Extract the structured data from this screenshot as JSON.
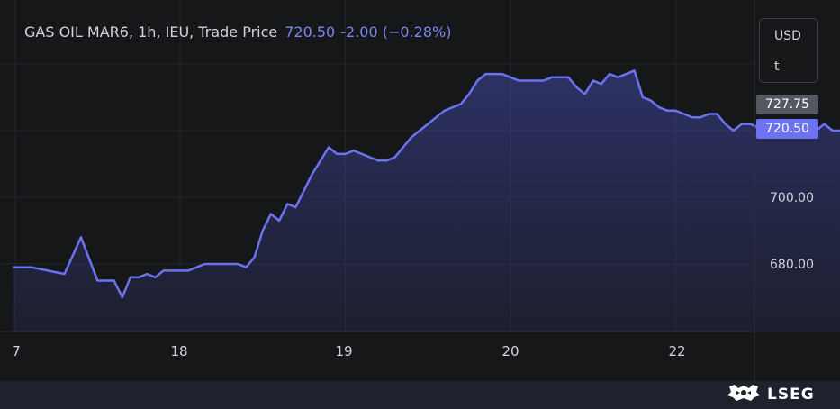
{
  "legend": {
    "title": "GAS OIL MAR6, 1h, IEU, Trade Price",
    "price": "720.50",
    "change": "-2.00 (−0.28%)"
  },
  "currency": {
    "code": "USD",
    "unit": "t"
  },
  "badges": {
    "last": "727.75",
    "current": "720.50"
  },
  "brand": {
    "logo_text": "LSEG"
  },
  "colors": {
    "line": "#6b73f0",
    "background": "#161719",
    "footer": "#1e222d"
  },
  "chart_data": {
    "type": "area",
    "title": "GAS OIL MAR6, 1h, IEU, Trade Price",
    "y_ticks": [
      "680.00",
      "700.00"
    ],
    "x_ticks": [
      "7",
      "18",
      "19",
      "20",
      "22"
    ],
    "ylim": [
      660,
      740
    ],
    "grid": true,
    "x_days": [
      17,
      17.1,
      17.2,
      17.3,
      17.4,
      17.5,
      17.6,
      17.65,
      17.7,
      17.75,
      17.8,
      17.85,
      17.9,
      17.95,
      18.0,
      18.05,
      18.1,
      18.15,
      18.2,
      18.25,
      18.3,
      18.35,
      18.4,
      18.45,
      18.5,
      18.55,
      18.6,
      18.65,
      18.7,
      18.75,
      18.8,
      18.85,
      18.9,
      18.95,
      19.0,
      19.05,
      19.1,
      19.15,
      19.2,
      19.25,
      19.3,
      19.35,
      19.4,
      19.45,
      19.5,
      19.55,
      19.6,
      19.65,
      19.7,
      19.75,
      19.8,
      19.85,
      19.9,
      19.95,
      20.0,
      20.05,
      20.1,
      20.15,
      20.2,
      20.25,
      20.3,
      20.35,
      20.4,
      20.45,
      20.5,
      20.55,
      20.6,
      20.65,
      20.7,
      20.75,
      20.8,
      20.85,
      20.9,
      20.95,
      21.0,
      21.05,
      21.1,
      21.15,
      21.2,
      21.25,
      21.3,
      21.35,
      21.4,
      21.45,
      21.5,
      21.55,
      21.6,
      21.65,
      21.7,
      21.75,
      21.8,
      21.85,
      21.9,
      21.95,
      22.0,
      22.05,
      22.1,
      22.15,
      22.2,
      22.25,
      22.3,
      22.35
    ],
    "values": [
      679,
      679,
      678,
      677,
      688,
      675,
      675,
      670,
      676,
      676,
      677,
      676,
      678,
      678,
      678,
      678,
      679,
      680,
      680,
      680,
      680,
      680,
      679,
      682,
      690,
      695,
      693,
      698,
      697,
      702,
      707,
      711,
      715,
      713,
      713,
      714,
      713,
      712,
      711,
      711,
      712,
      715,
      718,
      720,
      722,
      724,
      726,
      727,
      728,
      731,
      735,
      737,
      737,
      737,
      736,
      735,
      735,
      735,
      735,
      736,
      736,
      736,
      733,
      731,
      735,
      734,
      737,
      736,
      737,
      738,
      730,
      729,
      727,
      726,
      726,
      725,
      724,
      724,
      725,
      725,
      722,
      720,
      722,
      722,
      721,
      720,
      720,
      720,
      721,
      723,
      721,
      720,
      722,
      720,
      720,
      721,
      722,
      721,
      720,
      720,
      721,
      720.5
    ]
  }
}
